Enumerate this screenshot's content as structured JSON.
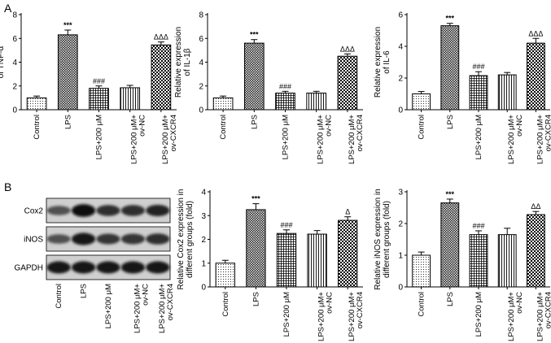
{
  "panel_labels": [
    "A",
    "B"
  ],
  "blot": {
    "rows": [
      "Cox2",
      "iNOS",
      "GAPDH"
    ],
    "lanes": [
      "Control",
      "LPS",
      "LPS+200 μM",
      "LPS+200 μM+\nov-NC",
      "LPS+200 μM+\nov-CXCR4"
    ],
    "band_intensity": [
      [
        0.55,
        0.95,
        0.75,
        0.75,
        0.8
      ],
      [
        0.55,
        0.9,
        0.7,
        0.7,
        0.75
      ],
      [
        0.9,
        0.9,
        0.9,
        0.9,
        0.9
      ]
    ]
  },
  "patterns": [
    "dots",
    "crosshatch-dense",
    "grid",
    "vlines",
    "checker"
  ],
  "chart_data": [
    {
      "type": "bar",
      "categories": [
        "Control",
        "LPS",
        "LPS+200 μM",
        "LPS+200 μM+\nov-NC",
        "LPS+200 μM+\nov-CXCR4"
      ],
      "values": [
        1.0,
        6.3,
        1.8,
        1.85,
        5.45
      ],
      "errors": [
        0.15,
        0.4,
        0.2,
        0.2,
        0.25
      ],
      "annotations": [
        "",
        "***",
        "###",
        "",
        "ΔΔΔ"
      ],
      "ylabel": "Relative expression\nof TNF-α",
      "ylim": [
        0,
        8
      ],
      "yticks": [
        0,
        2,
        4,
        6,
        8
      ]
    },
    {
      "type": "bar",
      "categories": [
        "Control",
        "LPS",
        "LPS+200 μM",
        "LPS+200 μM+\nov-NC",
        "LPS+200 μM+\nov-CXCR4"
      ],
      "values": [
        1.0,
        5.6,
        1.4,
        1.4,
        4.5
      ],
      "errors": [
        0.15,
        0.3,
        0.15,
        0.15,
        0.2
      ],
      "annotations": [
        "",
        "***",
        "###",
        "",
        "ΔΔΔ"
      ],
      "ylabel": "Relative expression\nof IL-1β",
      "ylim": [
        0,
        8
      ],
      "yticks": [
        0,
        2,
        4,
        6,
        8
      ]
    },
    {
      "type": "bar",
      "categories": [
        "Control",
        "LPS",
        "LPS+200 μM",
        "LPS+200 μM+\nov-NC",
        "LPS+200 μM+\nov-CXCR4"
      ],
      "values": [
        1.0,
        5.3,
        2.15,
        2.2,
        4.2
      ],
      "errors": [
        0.15,
        0.15,
        0.25,
        0.15,
        0.3
      ],
      "annotations": [
        "",
        "***",
        "###",
        "",
        "ΔΔΔ"
      ],
      "ylabel": "Relative expression\nof IL-6",
      "ylim": [
        0,
        6
      ],
      "yticks": [
        0,
        2,
        4,
        6
      ]
    },
    {
      "type": "bar",
      "categories": [
        "Control",
        "LPS",
        "LPS+200 μM",
        "LPS+200 μM+\nov-NC",
        "LPS+200 μM+\nov-CXCR4"
      ],
      "values": [
        1.0,
        3.25,
        2.25,
        2.22,
        2.8
      ],
      "errors": [
        0.12,
        0.25,
        0.15,
        0.15,
        0.15
      ],
      "annotations": [
        "",
        "***",
        "###",
        "",
        "Δ"
      ],
      "ylabel": "Relative Cox2 expression in\ndifferent groups (fold)",
      "ylim": [
        0,
        4
      ],
      "yticks": [
        0,
        1,
        2,
        3,
        4
      ]
    },
    {
      "type": "bar",
      "categories": [
        "Control",
        "LPS",
        "LPS+200 μM",
        "LPS+200 μM+\nov-NC",
        "LPS+200 μM+\nov-CXCR4"
      ],
      "values": [
        1.0,
        2.65,
        1.65,
        1.65,
        2.28
      ],
      "errors": [
        0.1,
        0.12,
        0.12,
        0.2,
        0.1
      ],
      "annotations": [
        "",
        "***",
        "###",
        "",
        "ΔΔ"
      ],
      "ylabel": "Relative iNOS expression in\ndifferent groups (fold)",
      "ylim": [
        0,
        3
      ],
      "yticks": [
        0,
        1,
        2,
        3
      ]
    }
  ]
}
